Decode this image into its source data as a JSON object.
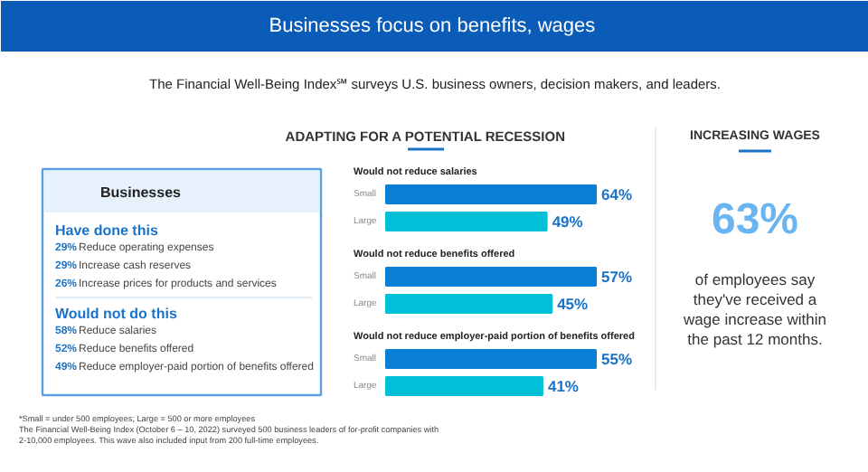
{
  "chart_data": [
    {
      "type": "other",
      "title": "Businesses focus on benefits,  wages",
      "subtitle": "The Financial Well-Being Index℠ surveys U.S. business owners, decision makers, and leaders.",
      "annotations": [
        "ADAPTING FOR A POTENTIAL RECESSION",
        "*Small = under 500 employees; Large = 500 or more employees",
        "The Financial Well-Being Index (October 6 – 10, 2022) surveyed 500 business leaders of for-profit companies with 2-10,000 employees. This wave also included input from 200 full-time employees."
      ]
    },
    {
      "type": "other",
      "title": "Businesses",
      "annotations": [
        "Have done this",
        "29% Reduce operating expenses",
        "29% Increase cash reserves",
        "26% Increase prices for products and services",
        "Would not do this",
        "58% Reduce salaries",
        "52% Reduce benefits offered",
        "49% Reduce employer-paid portion of benefits offered"
      ]
    },
    {
      "type": "bar",
      "orientation": "horizontal",
      "title": "Would not reduce salaries",
      "categories": [
        "Small",
        "Large"
      ],
      "values": [
        64,
        49
      ],
      "value_labels": [
        "64%",
        "49%"
      ],
      "colors": [
        "#0a7fd6",
        "#00c0d8"
      ]
    },
    {
      "type": "bar",
      "orientation": "horizontal",
      "title": "Would not reduce benefits offered",
      "categories": [
        "Small",
        "Large"
      ],
      "values": [
        57,
        45
      ],
      "value_labels": [
        "57%",
        "45%"
      ],
      "colors": [
        "#0a7fd6",
        "#00c0d8"
      ]
    },
    {
      "type": "bar",
      "orientation": "horizontal",
      "title": "Would not reduce employer-paid portion of benefits offered",
      "categories": [
        "Small",
        "Large"
      ],
      "values": [
        55,
        41
      ],
      "value_labels": [
        "55%",
        "41%"
      ],
      "colors": [
        "#0a7fd6",
        "#00c0d8"
      ]
    },
    {
      "type": "other",
      "title": "INCREASING WAGES",
      "annotations": [
        "63%",
        "of employees say they've received a wage increase within the past 12 months."
      ]
    }
  ]
}
